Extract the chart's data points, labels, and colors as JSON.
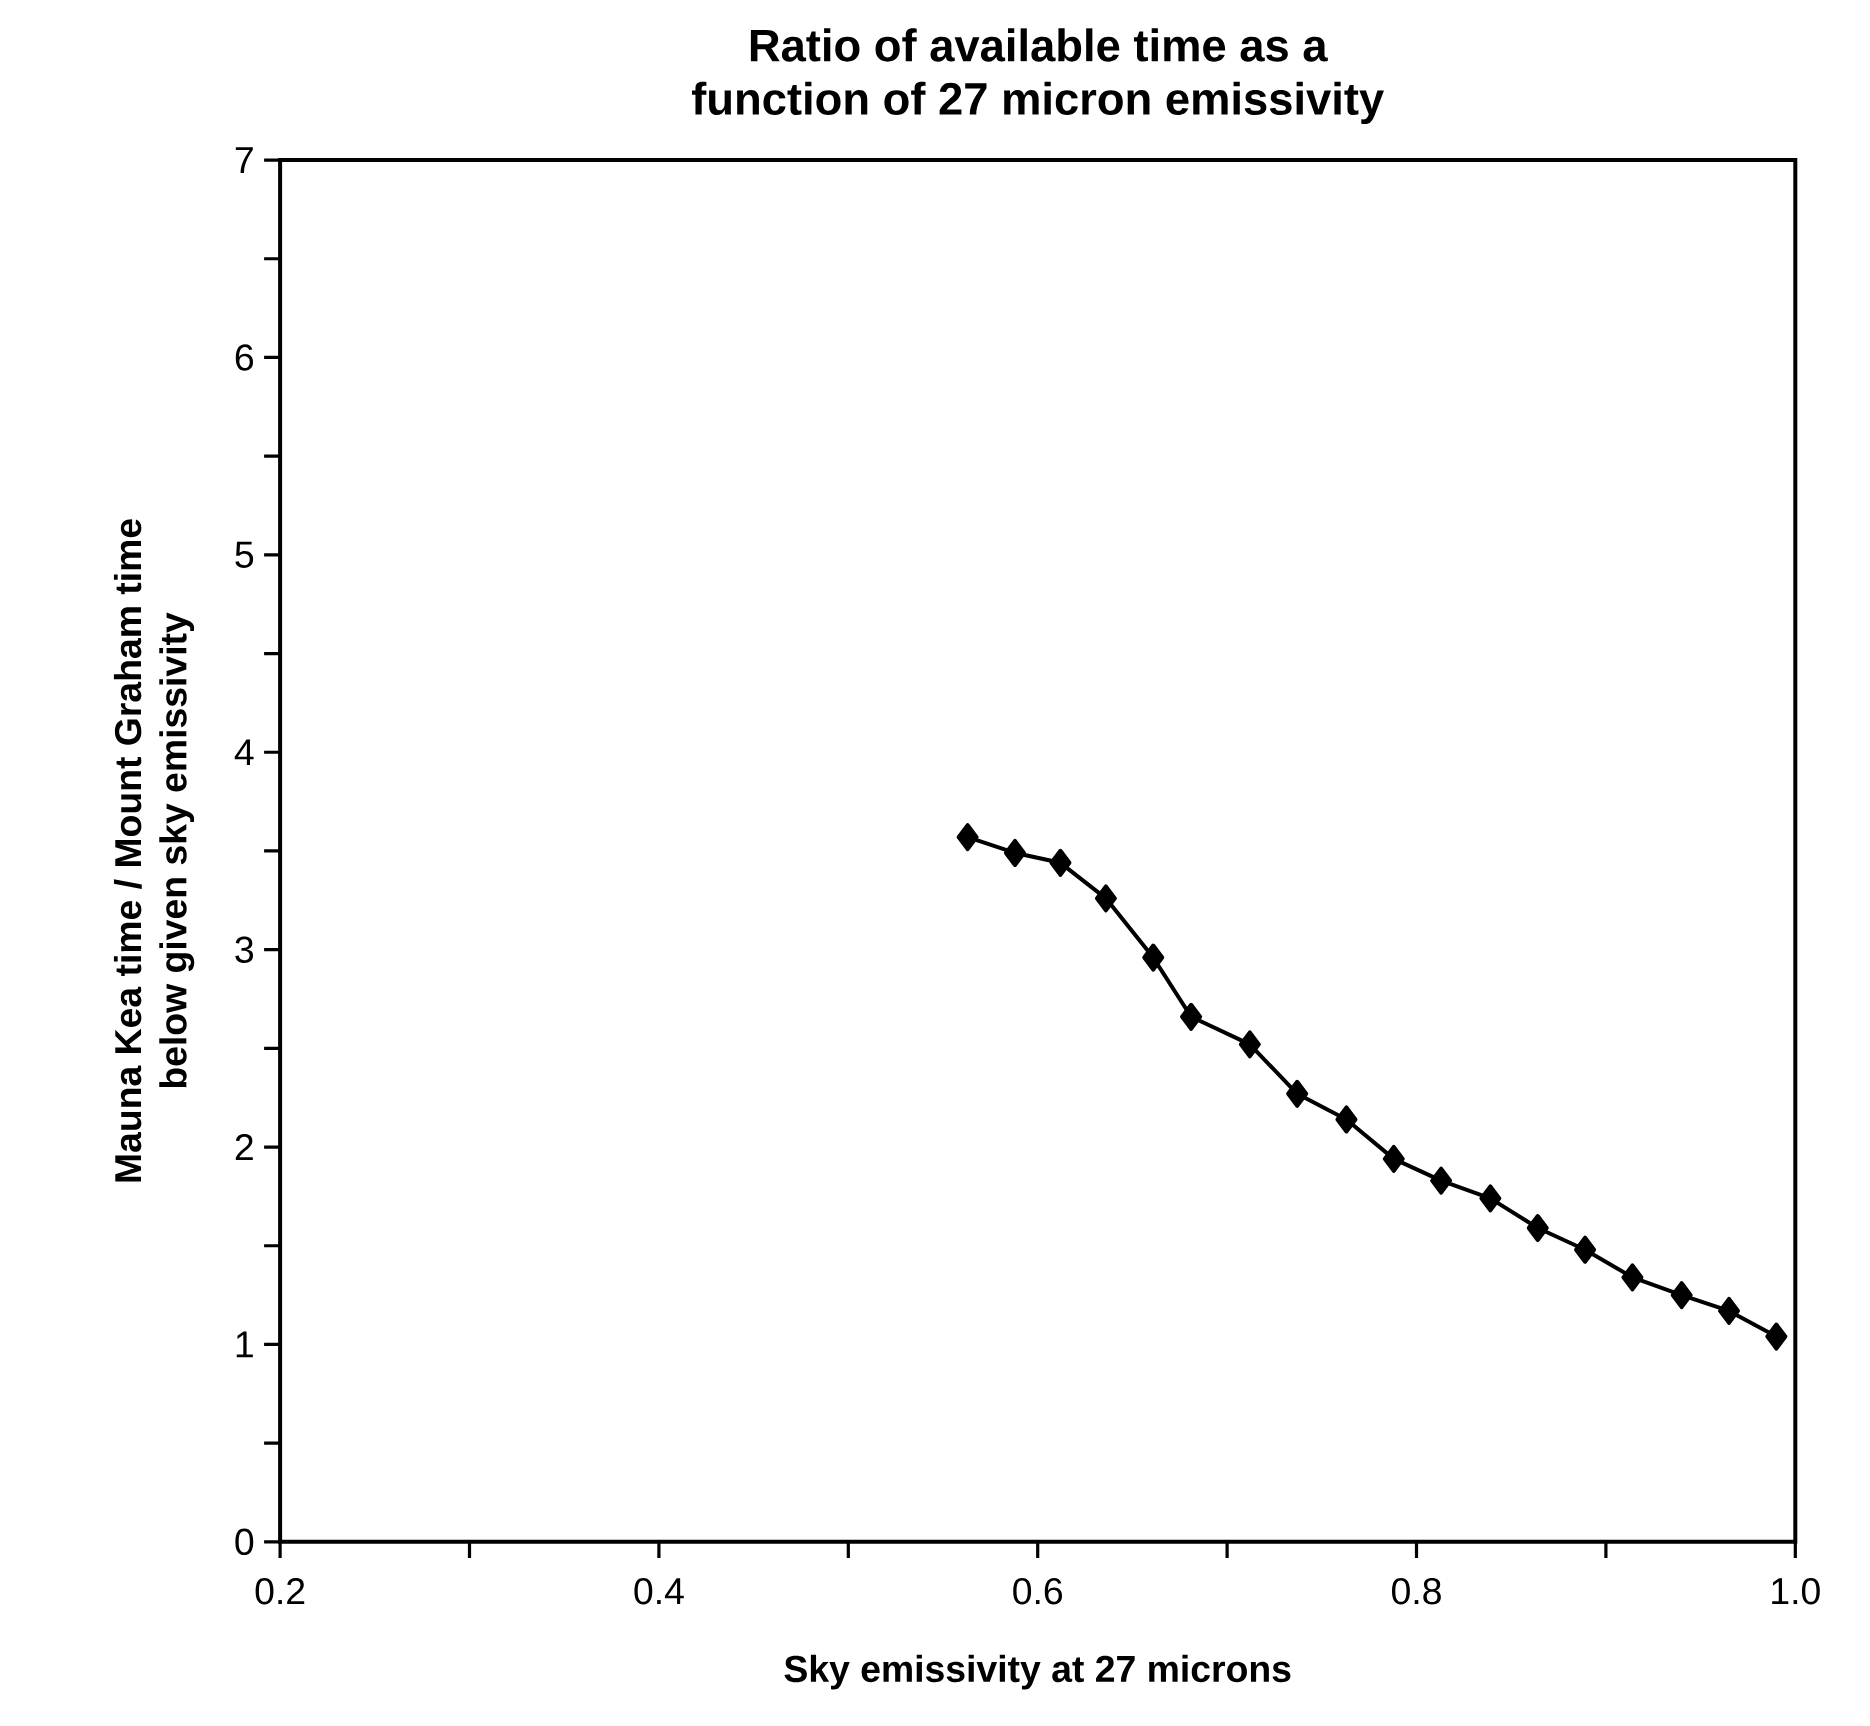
{
  "chart_data": {
    "type": "line",
    "title": "Ratio of available time as a\nfunction of 27 micron emissivity",
    "xlabel": "Sky emissivity at 27 microns",
    "ylabel": "Mauna Kea time / Mount Graham time\nbelow given sky emissivity",
    "x": [
      0.563,
      0.588,
      0.612,
      0.636,
      0.661,
      0.681,
      0.712,
      0.737,
      0.763,
      0.788,
      0.813,
      0.839,
      0.864,
      0.889,
      0.914,
      0.94,
      0.965,
      0.99
    ],
    "values": [
      3.57,
      3.49,
      3.44,
      3.26,
      2.96,
      2.66,
      2.52,
      2.27,
      2.14,
      1.94,
      1.83,
      1.74,
      1.59,
      1.48,
      1.34,
      1.25,
      1.17,
      1.04
    ],
    "color": "#000000",
    "marker": "diamond",
    "line_style": "solid",
    "xlim": [
      0.2,
      1.0
    ],
    "ylim": [
      0,
      7
    ],
    "xticks": [
      {
        "value": 0.2,
        "label": "0.2"
      },
      {
        "value": 0.3,
        "label": null
      },
      {
        "value": 0.4,
        "label": "0.4"
      },
      {
        "value": 0.5,
        "label": null
      },
      {
        "value": 0.6,
        "label": "0.6"
      },
      {
        "value": 0.7,
        "label": null
      },
      {
        "value": 0.8,
        "label": "0.8"
      },
      {
        "value": 0.9,
        "label": null
      },
      {
        "value": 1.0,
        "label": "1.0"
      }
    ],
    "yticks": [
      0,
      {
        "value": 0.5,
        "label": null
      },
      1,
      {
        "value": 1.5,
        "label": null
      },
      2,
      {
        "value": 2.5,
        "label": null
      },
      3,
      {
        "value": 3.5,
        "label": null
      },
      4,
      {
        "value": 4.5,
        "label": null
      },
      5,
      {
        "value": 5.5,
        "label": null
      },
      6,
      {
        "value": 6.5,
        "label": null
      },
      7
    ]
  }
}
